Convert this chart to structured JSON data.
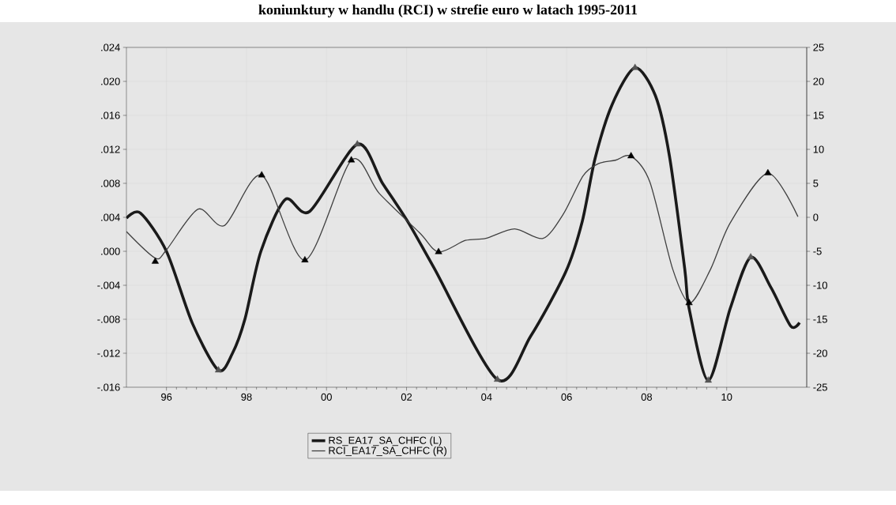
{
  "chart_data": {
    "type": "line",
    "title": "koniunktury w handlu (RCI) w strefie euro w latach 1995-2011",
    "xlim": [
      1995,
      2012
    ],
    "xticks": [
      {
        "value": 1996,
        "label": "96"
      },
      {
        "value": 1998,
        "label": "98"
      },
      {
        "value": 2000,
        "label": "00"
      },
      {
        "value": 2002,
        "label": "02"
      },
      {
        "value": 2004,
        "label": "04"
      },
      {
        "value": 2006,
        "label": "06"
      },
      {
        "value": 2008,
        "label": "08"
      },
      {
        "value": 2010,
        "label": "10"
      }
    ],
    "ylim": [
      -0.016,
      0.024
    ],
    "yticks": [
      {
        "value": -0.016,
        "label": "-.016"
      },
      {
        "value": -0.012,
        "label": "-.012"
      },
      {
        "value": -0.008,
        "label": "-.008"
      },
      {
        "value": -0.004,
        "label": "-.004"
      },
      {
        "value": 0,
        "label": ".000"
      },
      {
        "value": 0.004,
        "label": ".004"
      },
      {
        "value": 0.008,
        "label": ".008"
      },
      {
        "value": 0.012,
        "label": ".012"
      },
      {
        "value": 0.016,
        "label": ".016"
      },
      {
        "value": 0.02,
        "label": ".020"
      },
      {
        "value": 0.024,
        "label": ".024"
      }
    ],
    "y2lim": [
      -25,
      25
    ],
    "y2ticks": [
      -25,
      -20,
      -15,
      -10,
      -5,
      0,
      5,
      10,
      15,
      20,
      25
    ],
    "grid": true,
    "legend": "bottom",
    "series": [
      {
        "name": "RS_EA17_SA_CHFC (L)",
        "axis": "y",
        "color": "#1a1a1a",
        "x": [
          1995.0,
          1995.35,
          1996.0,
          1996.65,
          1997.3,
          1997.65,
          1997.96,
          1998.36,
          1998.97,
          1999.58,
          2000.77,
          2001.4,
          2002.03,
          2002.68,
          2004.27,
          2005.1,
          2005.98,
          2006.39,
          2006.71,
          2007.14,
          2007.71,
          2008.22,
          2008.57,
          2008.95,
          2009.06,
          2009.54,
          2010.09,
          2010.6,
          2011.11,
          2011.6,
          2011.82
        ],
        "values": [
          0.0039,
          0.0045,
          0.0,
          -0.0085,
          -0.014,
          -0.012,
          -0.008,
          0.0,
          0.0061,
          0.0047,
          0.0126,
          0.008,
          0.0035,
          -0.0019,
          -0.0151,
          -0.01,
          -0.0024,
          0.0035,
          0.0109,
          0.0173,
          0.0216,
          0.0183,
          0.0112,
          -0.002,
          -0.0067,
          -0.0152,
          -0.0067,
          -0.0007,
          -0.0043,
          -0.0088,
          -0.0084
        ]
      },
      {
        "name": "RCI_EA17_SA_CHFC (R)",
        "axis": "y2",
        "color": "#404040",
        "x": [
          1995.0,
          1995.72,
          1996.0,
          1996.79,
          1997.45,
          1998.38,
          1999.46,
          2000.62,
          2001.32,
          2002.33,
          2002.8,
          2003.47,
          2003.98,
          2004.7,
          2005.41,
          2005.92,
          2006.41,
          2006.79,
          2007.22,
          2007.61,
          2008.08,
          2008.65,
          2009.08,
          2009.6,
          2010.09,
          2011.03,
          2011.78
        ],
        "values": [
          -2.1,
          -6.0,
          -4.8,
          1.2,
          -1.2,
          6.2,
          -6.3,
          8.4,
          3.5,
          -2.3,
          -5.1,
          -3.4,
          -3.1,
          -1.7,
          -3.1,
          0.5,
          6.1,
          7.9,
          8.4,
          9.0,
          5.2,
          -7.6,
          -12.6,
          -7.6,
          -0.8,
          6.5,
          0.1
        ]
      },
      {
        "type": "scatter",
        "axis": "y",
        "marker": "triangle",
        "color": "#555555",
        "x": [
          1997.3,
          2000.77,
          2004.27,
          2007.71,
          2009.54,
          2010.6
        ],
        "values": [
          -0.014,
          0.0126,
          -0.0151,
          0.0216,
          -0.0152,
          -0.0007
        ]
      },
      {
        "type": "scatter",
        "axis": "y2",
        "marker": "triangle",
        "color": "#000000",
        "x": [
          1995.72,
          1998.38,
          1999.46,
          2000.62,
          2002.8,
          2007.61,
          2009.06,
          2011.03
        ],
        "values": [
          -6.5,
          6.2,
          -6.3,
          8.4,
          -5.1,
          9.0,
          -12.6,
          6.5
        ]
      }
    ]
  }
}
